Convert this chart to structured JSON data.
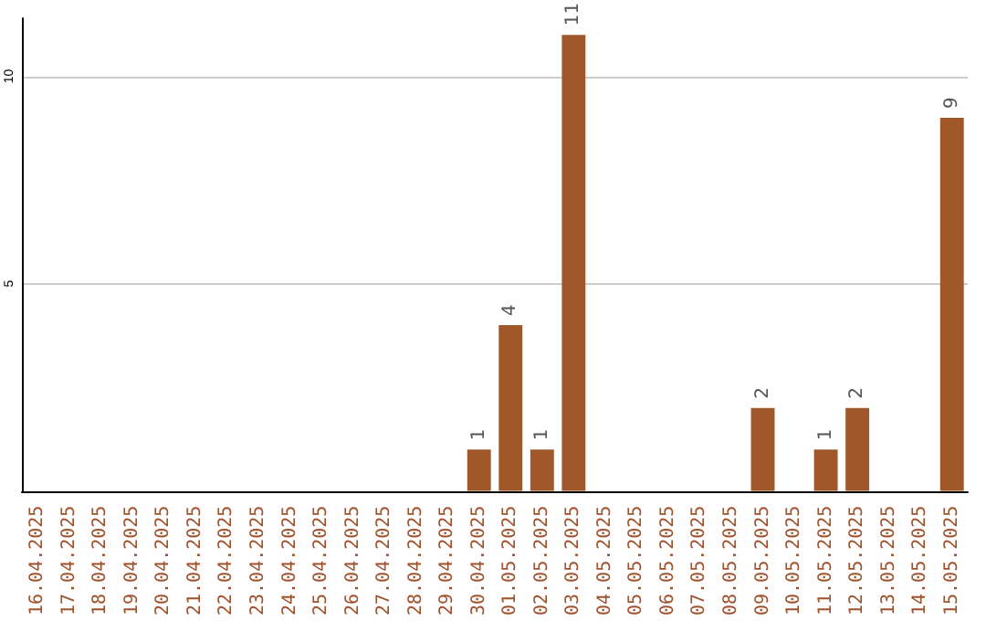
{
  "chart_data": {
    "type": "bar",
    "categories": [
      "16.04.2025",
      "17.04.2025",
      "18.04.2025",
      "19.04.2025",
      "20.04.2025",
      "21.04.2025",
      "22.04.2025",
      "23.04.2025",
      "24.04.2025",
      "25.04.2025",
      "26.04.2025",
      "27.04.2025",
      "28.04.2025",
      "29.04.2025",
      "30.04.2025",
      "01.05.2025",
      "02.05.2025",
      "03.05.2025",
      "04.05.2025",
      "05.05.2025",
      "06.05.2025",
      "07.05.2025",
      "08.05.2025",
      "09.05.2025",
      "10.05.2025",
      "11.05.2025",
      "12.05.2025",
      "13.05.2025",
      "14.05.2025",
      "15.05.2025"
    ],
    "values": [
      0,
      0,
      0,
      0,
      0,
      0,
      0,
      0,
      0,
      0,
      0,
      0,
      0,
      0,
      1,
      4,
      1,
      11,
      0,
      0,
      0,
      0,
      0,
      2,
      0,
      1,
      2,
      0,
      0,
      9
    ],
    "value_labels": [
      null,
      null,
      null,
      null,
      null,
      null,
      null,
      null,
      null,
      null,
      null,
      null,
      null,
      null,
      "1",
      "4",
      "1",
      "11",
      null,
      null,
      null,
      null,
      null,
      "2",
      null,
      "1",
      "2",
      null,
      null,
      "9"
    ],
    "color": "#a0582a",
    "ylim": [
      0,
      11.4
    ],
    "yticks": [
      5,
      10
    ],
    "grid": "y"
  }
}
